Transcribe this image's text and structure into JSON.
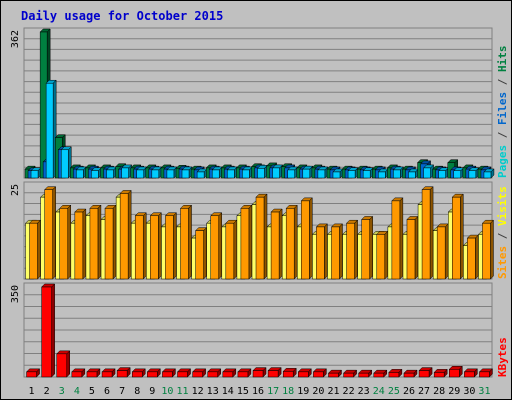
{
  "chart_data": {
    "type": "bar",
    "title": "Daily usage for October 2015",
    "categories": [
      "1",
      "2",
      "3",
      "4",
      "5",
      "6",
      "7",
      "8",
      "9",
      "10",
      "11",
      "12",
      "13",
      "14",
      "15",
      "16",
      "17",
      "18",
      "19",
      "20",
      "21",
      "22",
      "23",
      "24",
      "25",
      "26",
      "27",
      "28",
      "29",
      "30",
      "31"
    ],
    "weekend_days": [
      "3",
      "4",
      "10",
      "11",
      "17",
      "18",
      "24",
      "25",
      "31"
    ],
    "panels": [
      {
        "name": "pages-files-hits",
        "ymax_label": "362",
        "ymax": 362,
        "right_label": [
          {
            "text": "Pages",
            "color": "#00cccc"
          },
          {
            "text": " / ",
            "color": "#404040"
          },
          {
            "text": "Files",
            "color": "#0066cc"
          },
          {
            "text": " / ",
            "color": "#404040"
          },
          {
            "text": "Hits",
            "color": "#008040"
          }
        ],
        "series": [
          {
            "name": "Hits",
            "color": "#008040",
            "values": [
              22,
              362,
              100,
              25,
              25,
              25,
              28,
              25,
              25,
              25,
              24,
              22,
              25,
              25,
              25,
              28,
              30,
              28,
              25,
              25,
              22,
              22,
              22,
              22,
              25,
              22,
              38,
              22,
              38,
              25,
              22
            ]
          },
          {
            "name": "Files",
            "color": "#0066cc",
            "values": [
              18,
              40,
              70,
              22,
              22,
              22,
              22,
              22,
              22,
              22,
              22,
              20,
              22,
              22,
              22,
              25,
              25,
              25,
              22,
              22,
              20,
              20,
              20,
              20,
              22,
              20,
              35,
              20,
              20,
              22,
              20
            ]
          },
          {
            "name": "Pages",
            "color": "#00ccff",
            "values": [
              18,
              235,
              70,
              20,
              18,
              20,
              25,
              20,
              20,
              20,
              20,
              15,
              20,
              20,
              20,
              24,
              25,
              20,
              22,
              20,
              15,
              18,
              18,
              15,
              20,
              15,
              25,
              18,
              18,
              18,
              15
            ]
          }
        ]
      },
      {
        "name": "visits-sites",
        "ymax_label": "25",
        "ymax": 25,
        "right_label": [
          {
            "text": "Sites",
            "color": "#ff9900"
          },
          {
            "text": " / ",
            "color": "#404040"
          },
          {
            "text": "Visits",
            "color": "#ffff00"
          }
        ],
        "series": [
          {
            "name": "Visits",
            "color": "#ffff66",
            "values": [
              15,
              22,
              18,
              15,
              17,
              16,
              22,
              15,
              15,
              14,
              14,
              11,
              15,
              14,
              17,
              20,
              14,
              17,
              14,
              12,
              12,
              12,
              12,
              12,
              14,
              12,
              20,
              13,
              18,
              9,
              12
            ]
          },
          {
            "name": "Sites",
            "color": "#ff9900",
            "values": [
              15,
              24,
              19,
              18,
              19,
              19,
              23,
              17,
              17,
              17,
              19,
              13,
              17,
              15,
              19,
              22,
              18,
              19,
              21,
              14,
              14,
              15,
              16,
              12,
              21,
              16,
              24,
              14,
              22,
              11,
              15
            ]
          }
        ]
      },
      {
        "name": "kbytes",
        "ymax_label": "350",
        "ymax": 350,
        "right_label": [
          {
            "text": "KBytes",
            "color": "#ff0000"
          }
        ],
        "series": [
          {
            "name": "KBytes",
            "color": "#ff0000",
            "values": [
              20,
              350,
              90,
              20,
              20,
              20,
              25,
              20,
              20,
              20,
              20,
              20,
              20,
              20,
              20,
              25,
              25,
              22,
              20,
              20,
              15,
              15,
              15,
              15,
              18,
              15,
              25,
              18,
              30,
              20,
              20
            ]
          }
        ]
      }
    ]
  }
}
